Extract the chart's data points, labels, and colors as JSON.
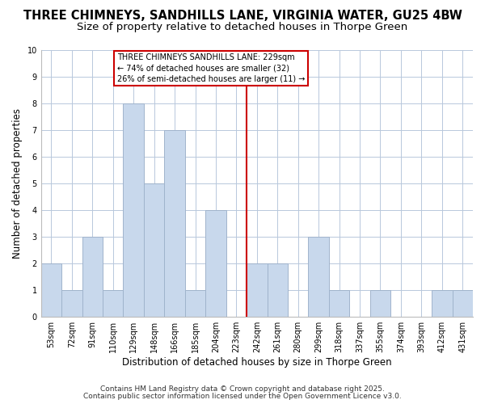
{
  "title": "THREE CHIMNEYS, SANDHILLS LANE, VIRGINIA WATER, GU25 4BW",
  "subtitle": "Size of property relative to detached houses in Thorpe Green",
  "xlabel": "Distribution of detached houses by size in Thorpe Green",
  "ylabel": "Number of detached properties",
  "bin_labels": [
    "53sqm",
    "72sqm",
    "91sqm",
    "110sqm",
    "129sqm",
    "148sqm",
    "166sqm",
    "185sqm",
    "204sqm",
    "223sqm",
    "242sqm",
    "261sqm",
    "280sqm",
    "299sqm",
    "318sqm",
    "337sqm",
    "355sqm",
    "374sqm",
    "393sqm",
    "412sqm",
    "431sqm"
  ],
  "bar_heights": [
    2,
    1,
    3,
    1,
    8,
    5,
    7,
    1,
    4,
    0,
    2,
    2,
    0,
    3,
    1,
    0,
    1,
    0,
    0,
    1,
    1
  ],
  "bar_color": "#c8d8ec",
  "bar_edge_color": "#a0b4cc",
  "ylim": [
    0,
    10
  ],
  "yticks": [
    0,
    1,
    2,
    3,
    4,
    5,
    6,
    7,
    8,
    9,
    10
  ],
  "marker_color": "#cc0000",
  "annotation_title": "THREE CHIMNEYS SANDHILLS LANE: 229sqm",
  "annotation_line1": "← 74% of detached houses are smaller (32)",
  "annotation_line2": "26% of semi-detached houses are larger (11) →",
  "annotation_box_edge": "#cc0000",
  "footnote1": "Contains HM Land Registry data © Crown copyright and database right 2025.",
  "footnote2": "Contains public sector information licensed under the Open Government Licence v3.0.",
  "background_color": "#ffffff",
  "grid_color": "#b8c8dc",
  "title_fontsize": 10.5,
  "subtitle_fontsize": 9.5,
  "axis_label_fontsize": 8.5,
  "tick_fontsize": 7,
  "footnote_fontsize": 6.5
}
